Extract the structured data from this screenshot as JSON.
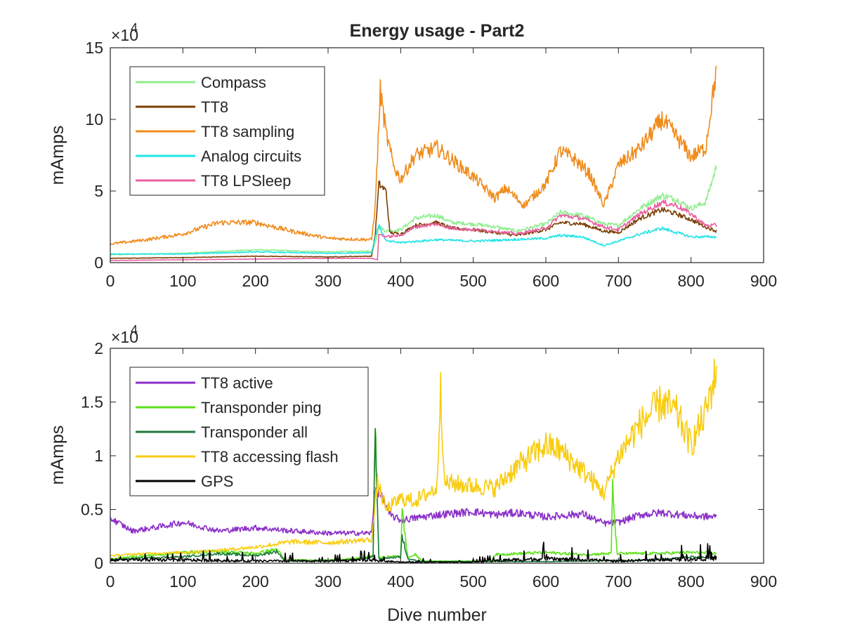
{
  "title": "Energy usage - Part2",
  "chart_data": [
    {
      "type": "line",
      "id": "top",
      "title": "Energy usage - Part2",
      "xlabel": "",
      "ylabel": "mAmps",
      "xlim": [
        0,
        900
      ],
      "ylim": [
        0,
        150000
      ],
      "xticks": [
        0,
        100,
        200,
        300,
        400,
        500,
        600,
        700,
        800,
        900
      ],
      "yticks": [
        0,
        50000,
        100000,
        150000
      ],
      "ytick_labels": [
        "0",
        "5",
        "10",
        "15"
      ],
      "exponent_label": "×10",
      "exponent_power": "4",
      "grid": false,
      "legend_position": "top-left",
      "series": [
        {
          "name": "Compass",
          "color": "#90EE90",
          "noise": 0.05,
          "points": [
            [
              0,
              5500
            ],
            [
              100,
              6500
            ],
            [
              200,
              9000
            ],
            [
              300,
              7500
            ],
            [
              360,
              8000
            ],
            [
              365,
              14000
            ],
            [
              370,
              25000
            ],
            [
              380,
              22000
            ],
            [
              400,
              23000
            ],
            [
              420,
              31000
            ],
            [
              450,
              33000
            ],
            [
              470,
              28000
            ],
            [
              500,
              27000
            ],
            [
              530,
              25000
            ],
            [
              560,
              22000
            ],
            [
              600,
              27000
            ],
            [
              620,
              35000
            ],
            [
              650,
              33000
            ],
            [
              680,
              27000
            ],
            [
              700,
              26000
            ],
            [
              730,
              38000
            ],
            [
              760,
              47000
            ],
            [
              780,
              44000
            ],
            [
              800,
              38000
            ],
            [
              820,
              42000
            ],
            [
              835,
              67000
            ]
          ]
        },
        {
          "name": "TT8",
          "color": "#7B3F00",
          "noise": 0.05,
          "points": [
            [
              0,
              3000
            ],
            [
              100,
              3500
            ],
            [
              200,
              4500
            ],
            [
              300,
              4000
            ],
            [
              360,
              4500
            ],
            [
              365,
              20000
            ],
            [
              370,
              55000
            ],
            [
              380,
              50000
            ],
            [
              385,
              21000
            ],
            [
              400,
              20000
            ],
            [
              420,
              26000
            ],
            [
              450,
              28000
            ],
            [
              470,
              24000
            ],
            [
              500,
              23000
            ],
            [
              530,
              21000
            ],
            [
              560,
              19000
            ],
            [
              600,
              23000
            ],
            [
              620,
              28000
            ],
            [
              650,
              27000
            ],
            [
              680,
              22000
            ],
            [
              700,
              21000
            ],
            [
              730,
              31000
            ],
            [
              760,
              37000
            ],
            [
              780,
              34000
            ],
            [
              800,
              30000
            ],
            [
              820,
              25000
            ],
            [
              835,
              22000
            ]
          ]
        },
        {
          "name": "TT8 sampling",
          "color": "#F08C1C",
          "noise": 0.07,
          "points": [
            [
              0,
              13000
            ],
            [
              50,
              16000
            ],
            [
              100,
              20000
            ],
            [
              130,
              25000
            ],
            [
              150,
              28000
            ],
            [
              200,
              28000
            ],
            [
              250,
              22000
            ],
            [
              300,
              17000
            ],
            [
              360,
              16000
            ],
            [
              365,
              40000
            ],
            [
              372,
              120000
            ],
            [
              380,
              90000
            ],
            [
              390,
              68000
            ],
            [
              400,
              58000
            ],
            [
              420,
              75000
            ],
            [
              450,
              80000
            ],
            [
              480,
              68000
            ],
            [
              500,
              60000
            ],
            [
              530,
              45000
            ],
            [
              545,
              52000
            ],
            [
              570,
              40000
            ],
            [
              600,
              55000
            ],
            [
              620,
              78000
            ],
            [
              640,
              72000
            ],
            [
              660,
              62000
            ],
            [
              680,
              40000
            ],
            [
              700,
              68000
            ],
            [
              730,
              80000
            ],
            [
              760,
              100000
            ],
            [
              780,
              88000
            ],
            [
              800,
              74000
            ],
            [
              820,
              80000
            ],
            [
              835,
              135000
            ]
          ]
        },
        {
          "name": "Analog circuits",
          "color": "#22E5E5",
          "noise": 0.05,
          "points": [
            [
              0,
              6000
            ],
            [
              100,
              6000
            ],
            [
              200,
              7500
            ],
            [
              300,
              6500
            ],
            [
              360,
              7000
            ],
            [
              365,
              18000
            ],
            [
              370,
              26000
            ],
            [
              380,
              15000
            ],
            [
              400,
              14000
            ],
            [
              450,
              16000
            ],
            [
              500,
              15000
            ],
            [
              550,
              16000
            ],
            [
              600,
              17000
            ],
            [
              620,
              19000
            ],
            [
              650,
              18000
            ],
            [
              680,
              12000
            ],
            [
              700,
              15000
            ],
            [
              730,
              20000
            ],
            [
              760,
              24000
            ],
            [
              780,
              21000
            ],
            [
              800,
              18000
            ],
            [
              835,
              18000
            ]
          ]
        },
        {
          "name": "TT8 LPSleep",
          "color": "#E9609F",
          "noise": 0.05,
          "points": [
            [
              0,
              1500
            ],
            [
              100,
              2000
            ],
            [
              200,
              2500
            ],
            [
              300,
              3000
            ],
            [
              360,
              3000
            ],
            [
              368,
              2000
            ],
            [
              370,
              20000
            ],
            [
              380,
              18000
            ],
            [
              400,
              19000
            ],
            [
              420,
              25000
            ],
            [
              450,
              27000
            ],
            [
              470,
              24000
            ],
            [
              500,
              23000
            ],
            [
              530,
              22000
            ],
            [
              560,
              20000
            ],
            [
              600,
              24000
            ],
            [
              620,
              33000
            ],
            [
              650,
              31000
            ],
            [
              680,
              25000
            ],
            [
              700,
              23000
            ],
            [
              730,
              34000
            ],
            [
              760,
              42000
            ],
            [
              780,
              40000
            ],
            [
              800,
              34000
            ],
            [
              820,
              26000
            ],
            [
              835,
              26000
            ]
          ]
        }
      ]
    },
    {
      "type": "line",
      "id": "bottom",
      "title": "",
      "xlabel": "Dive number",
      "ylabel": "mAmps",
      "xlim": [
        0,
        900
      ],
      "ylim": [
        0,
        20000
      ],
      "xticks": [
        0,
        100,
        200,
        300,
        400,
        500,
        600,
        700,
        800,
        900
      ],
      "yticks": [
        0,
        5000,
        10000,
        15000,
        20000
      ],
      "ytick_labels": [
        "0",
        "0.5",
        "1",
        "1.5",
        "2"
      ],
      "exponent_label": "×10",
      "exponent_power": "4",
      "grid": false,
      "legend_position": "top-left",
      "series": [
        {
          "name": "TT8 active",
          "color": "#8B2FC9",
          "noise": 0.08,
          "points": [
            [
              0,
              4200
            ],
            [
              30,
              3000
            ],
            [
              60,
              3300
            ],
            [
              100,
              3800
            ],
            [
              150,
              3000
            ],
            [
              200,
              3300
            ],
            [
              250,
              3000
            ],
            [
              300,
              2800
            ],
            [
              360,
              2800
            ],
            [
              365,
              7000
            ],
            [
              375,
              6000
            ],
            [
              385,
              4500
            ],
            [
              400,
              4000
            ],
            [
              450,
              4500
            ],
            [
              500,
              4800
            ],
            [
              530,
              4500
            ],
            [
              560,
              4700
            ],
            [
              600,
              4300
            ],
            [
              650,
              4600
            ],
            [
              680,
              3700
            ],
            [
              700,
              3800
            ],
            [
              730,
              4500
            ],
            [
              760,
              4700
            ],
            [
              800,
              4400
            ],
            [
              835,
              4300
            ]
          ]
        },
        {
          "name": "Transponder ping",
          "color": "#5EE11B",
          "noise": 0.15,
          "points": [
            [
              0,
              400
            ],
            [
              50,
              700
            ],
            [
              100,
              1000
            ],
            [
              150,
              1100
            ],
            [
              200,
              900
            ],
            [
              230,
              1300
            ],
            [
              240,
              300
            ],
            [
              300,
              300
            ],
            [
              350,
              500
            ],
            [
              362,
              700
            ],
            [
              365,
              12800
            ],
            [
              370,
              500
            ],
            [
              400,
              700
            ],
            [
              402,
              4800
            ],
            [
              410,
              500
            ],
            [
              420,
              800
            ],
            [
              430,
              200
            ],
            [
              525,
              200
            ],
            [
              530,
              800
            ],
            [
              600,
              1000
            ],
            [
              650,
              800
            ],
            [
              690,
              900
            ],
            [
              692,
              7000
            ],
            [
              698,
              900
            ],
            [
              750,
              900
            ],
            [
              800,
              1000
            ],
            [
              835,
              900
            ]
          ]
        },
        {
          "name": "Transponder all",
          "color": "#1F7A3F",
          "noise": 0.15,
          "points": [
            [
              0,
              300
            ],
            [
              50,
              500
            ],
            [
              100,
              600
            ],
            [
              150,
              900
            ],
            [
              200,
              700
            ],
            [
              230,
              1100
            ],
            [
              240,
              200
            ],
            [
              300,
              200
            ],
            [
              350,
              400
            ],
            [
              362,
              600
            ],
            [
              365,
              12500
            ],
            [
              370,
              400
            ],
            [
              400,
              600
            ],
            [
              402,
              2500
            ],
            [
              410,
              400
            ],
            [
              430,
              150
            ],
            [
              600,
              150
            ],
            [
              650,
              200
            ],
            [
              700,
              250
            ],
            [
              750,
              300
            ],
            [
              800,
              600
            ],
            [
              835,
              500
            ]
          ]
        },
        {
          "name": "TT8 accessing flash",
          "color": "#F9CC10",
          "noise": 0.12,
          "points": [
            [
              0,
              700
            ],
            [
              50,
              900
            ],
            [
              100,
              1000
            ],
            [
              150,
              1200
            ],
            [
              200,
              1500
            ],
            [
              250,
              2000
            ],
            [
              300,
              1900
            ],
            [
              360,
              2200
            ],
            [
              368,
              7500
            ],
            [
              380,
              5000
            ],
            [
              400,
              6000
            ],
            [
              420,
              5800
            ],
            [
              450,
              7000
            ],
            [
              455,
              17000
            ],
            [
              460,
              7500
            ],
            [
              500,
              7200
            ],
            [
              530,
              7000
            ],
            [
              560,
              9000
            ],
            [
              600,
              11000
            ],
            [
              620,
              10500
            ],
            [
              660,
              8000
            ],
            [
              680,
              6500
            ],
            [
              700,
              10000
            ],
            [
              730,
              13000
            ],
            [
              760,
              15000
            ],
            [
              780,
              14000
            ],
            [
              800,
              11000
            ],
            [
              820,
              14000
            ],
            [
              835,
              18000
            ]
          ]
        },
        {
          "name": "GPS",
          "color": "#000000",
          "noise": 0.5,
          "points": [
            [
              0,
              300
            ],
            [
              100,
              300
            ],
            [
              200,
              200
            ],
            [
              300,
              200
            ],
            [
              360,
              300
            ],
            [
              400,
              100
            ],
            [
              500,
              100
            ],
            [
              550,
              300
            ],
            [
              600,
              400
            ],
            [
              650,
              300
            ],
            [
              700,
              200
            ],
            [
              750,
              300
            ],
            [
              800,
              400
            ],
            [
              835,
              500
            ]
          ]
        }
      ]
    }
  ]
}
